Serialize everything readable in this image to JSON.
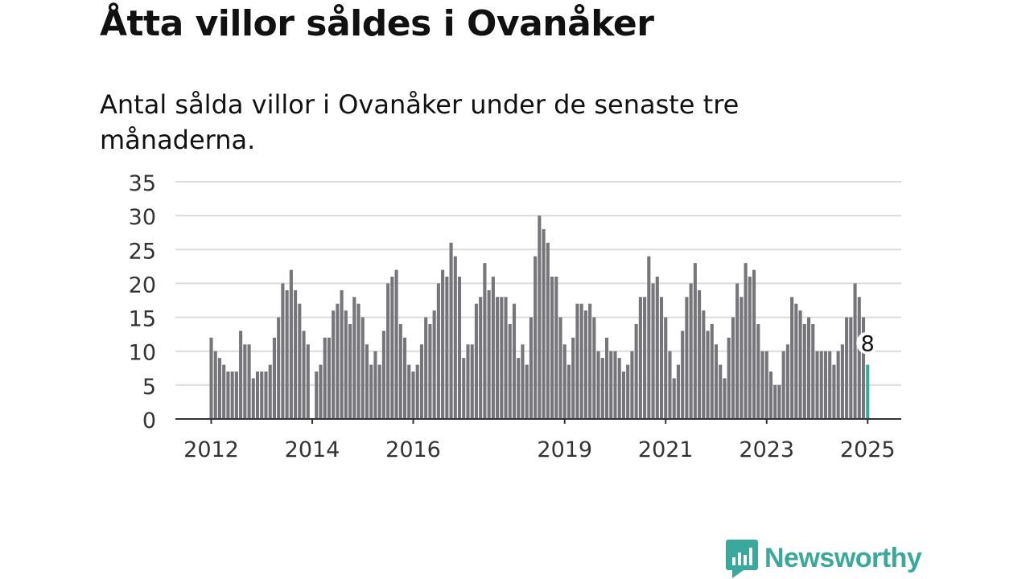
{
  "title": "Åtta villor såldes i Ovanåker",
  "subtitle": "Antal sålda villor i Ovanåker under de senaste tre månaderna.",
  "brand": {
    "name": "Newsworthy",
    "icon": "newsworthy-logo-icon",
    "color": "#3aa89b"
  },
  "chart_data": {
    "type": "bar",
    "title": "Åtta villor såldes i Ovanåker",
    "xlabel": "",
    "ylabel": "",
    "ylim": [
      0,
      35
    ],
    "yticks": [
      0,
      5,
      10,
      15,
      20,
      25,
      30,
      35
    ],
    "xticks": [
      {
        "label": "2012",
        "x": 2012.0
      },
      {
        "label": "2014",
        "x": 2014.0
      },
      {
        "label": "2016",
        "x": 2016.0
      },
      {
        "label": "2019",
        "x": 2019.0
      },
      {
        "label": "2021",
        "x": 2021.0
      },
      {
        "label": "2023",
        "x": 2023.0
      },
      {
        "label": "2025",
        "x": 2025.0
      }
    ],
    "grid": true,
    "bar_color": "#75757a",
    "highlight_color": "#3aa89b",
    "start": "2012-01",
    "interval": "month",
    "values": [
      12,
      10,
      9,
      8,
      7,
      7,
      7,
      13,
      11,
      11,
      6,
      7,
      7,
      7,
      8,
      12,
      15,
      20,
      19,
      22,
      19,
      17,
      13,
      11,
      0,
      7,
      8,
      12,
      12,
      16,
      17,
      19,
      16,
      14,
      18,
      17,
      15,
      11,
      8,
      10,
      8,
      13,
      20,
      21,
      22,
      14,
      12,
      8,
      7,
      8,
      11,
      15,
      14,
      16,
      20,
      22,
      21,
      26,
      24,
      21,
      9,
      11,
      11,
      17,
      18,
      23,
      19,
      21,
      18,
      18,
      18,
      14,
      17,
      9,
      11,
      8,
      15,
      24,
      30,
      28,
      26,
      21,
      21,
      15,
      11,
      8,
      12,
      17,
      17,
      16,
      17,
      15,
      10,
      9,
      12,
      10,
      10,
      9,
      7,
      8,
      10,
      14,
      18,
      18,
      24,
      20,
      21,
      18,
      15,
      10,
      6,
      8,
      13,
      18,
      20,
      23,
      19,
      16,
      13,
      14,
      11,
      8,
      6,
      12,
      15,
      20,
      18,
      23,
      21,
      22,
      14,
      10,
      10,
      7,
      5,
      5,
      10,
      11,
      18,
      17,
      16,
      14,
      15,
      14,
      10,
      10,
      10,
      10,
      8,
      10,
      11,
      15,
      15,
      20,
      18,
      15,
      8
    ],
    "highlight": {
      "index": 156,
      "label": "8"
    }
  }
}
